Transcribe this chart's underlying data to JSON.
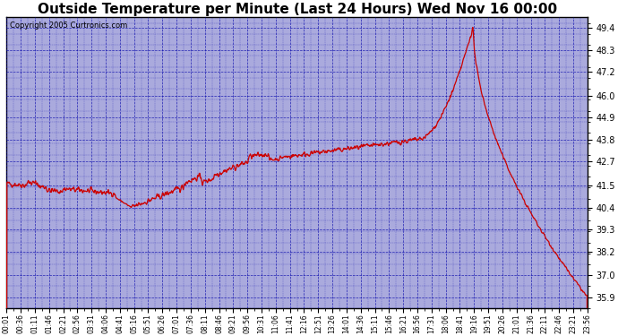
{
  "title": "Outside Temperature per Minute (Last 24 Hours) Wed Nov 16 00:00",
  "copyright": "Copyright 2005 Curtronics.com",
  "yticks": [
    35.9,
    37.0,
    38.2,
    39.3,
    40.4,
    41.5,
    42.7,
    43.8,
    44.9,
    46.0,
    47.2,
    48.3,
    49.4
  ],
  "ymin": 35.35,
  "ymax": 49.95,
  "fig_bg_color": "#FFFFFF",
  "plot_bg_color": "#AAAAEE",
  "line_color": "#CC0000",
  "grid_color": "#0000AA",
  "title_fontsize": 11,
  "xtick_labels": [
    "00:01",
    "00:36",
    "01:11",
    "01:46",
    "02:21",
    "02:56",
    "03:31",
    "04:06",
    "04:41",
    "05:16",
    "05:51",
    "06:26",
    "07:01",
    "07:36",
    "08:11",
    "08:46",
    "09:21",
    "09:56",
    "10:31",
    "11:06",
    "11:41",
    "12:16",
    "12:51",
    "13:26",
    "14:01",
    "14:36",
    "15:11",
    "15:46",
    "16:21",
    "16:56",
    "17:31",
    "18:06",
    "18:41",
    "19:16",
    "19:51",
    "20:26",
    "21:01",
    "21:36",
    "22:11",
    "22:46",
    "23:21",
    "23:56"
  ]
}
